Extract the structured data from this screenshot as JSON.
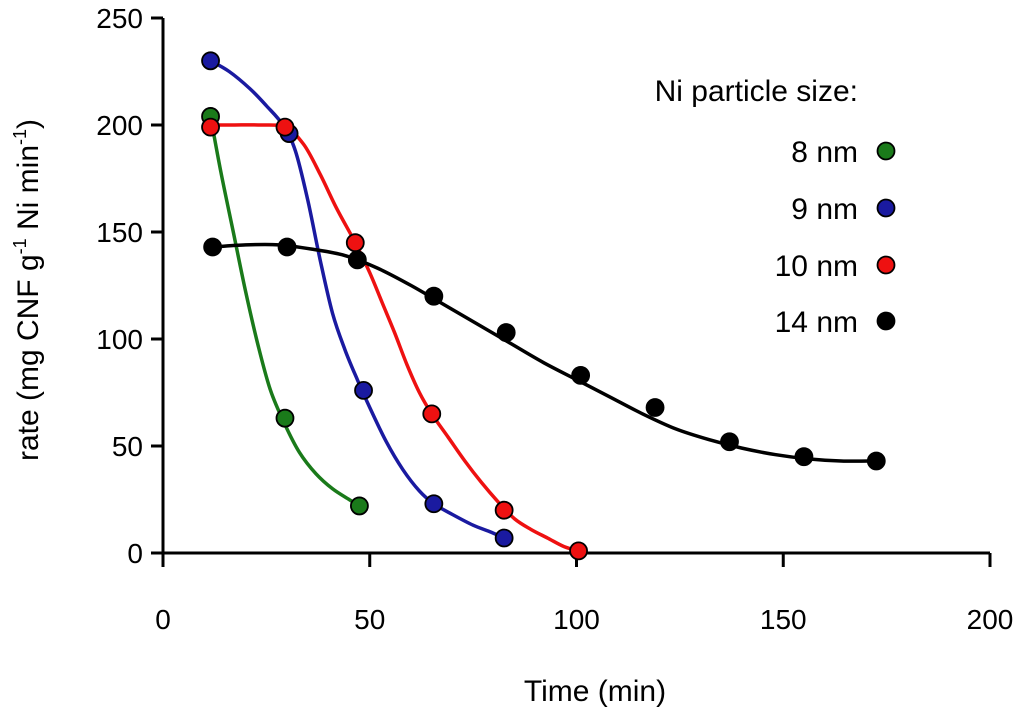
{
  "chart_data": {
    "type": "scatter",
    "title": "",
    "xlabel": "Time (min)",
    "ylabel_parts": [
      "rate (mg CNF g",
      "-1",
      " Ni min",
      "-1",
      ")"
    ],
    "xlim": [
      0,
      200
    ],
    "ylim": [
      0,
      250
    ],
    "xticks": [
      0,
      50,
      100,
      150,
      200
    ],
    "yticks": [
      0,
      50,
      100,
      150,
      200,
      250
    ],
    "grid": false,
    "legend_title": "Ni particle size:",
    "legend_position": "top-right",
    "series": [
      {
        "name": "8 nm",
        "color": "#1a7a1a",
        "x": [
          11.5,
          29.5,
          47.5
        ],
        "y": [
          204,
          63,
          22
        ],
        "curve": [
          [
            11.5,
            204
          ],
          [
            14,
            178
          ],
          [
            17,
            150
          ],
          [
            20,
            122
          ],
          [
            23,
            97
          ],
          [
            26,
            76
          ],
          [
            29.5,
            60
          ],
          [
            33,
            47
          ],
          [
            37,
            37
          ],
          [
            41,
            30
          ],
          [
            45,
            25
          ],
          [
            47.5,
            22
          ]
        ]
      },
      {
        "name": "9 nm",
        "color": "#1a1aa0",
        "x": [
          11.5,
          30.5,
          48.5,
          65.5,
          82.5
        ],
        "y": [
          230,
          196,
          76,
          23,
          7
        ],
        "curve": [
          [
            11.5,
            230
          ],
          [
            16,
            225
          ],
          [
            21,
            217
          ],
          [
            25,
            209
          ],
          [
            29,
            200
          ],
          [
            32,
            188
          ],
          [
            35,
            165
          ],
          [
            38,
            137
          ],
          [
            41,
            112
          ],
          [
            44,
            95
          ],
          [
            47,
            81
          ],
          [
            50,
            68
          ],
          [
            54,
            52
          ],
          [
            58,
            39
          ],
          [
            62,
            29
          ],
          [
            65.5,
            23
          ],
          [
            70,
            18
          ],
          [
            75,
            13
          ],
          [
            79,
            10
          ],
          [
            82.5,
            7
          ]
        ]
      },
      {
        "name": "10 nm",
        "color": "#ee1111",
        "x": [
          11.5,
          29.5,
          46.5,
          65,
          82.5,
          100.5
        ],
        "y": [
          199,
          199,
          145,
          65,
          20,
          1
        ],
        "curve": [
          [
            11.5,
            200
          ],
          [
            17,
            200
          ],
          [
            23,
            200
          ],
          [
            29.5,
            199
          ],
          [
            34,
            191
          ],
          [
            38,
            177
          ],
          [
            42,
            161
          ],
          [
            46.5,
            145
          ],
          [
            50,
            131
          ],
          [
            53,
            117
          ],
          [
            56,
            103
          ],
          [
            59,
            88
          ],
          [
            62,
            75
          ],
          [
            65,
            65
          ],
          [
            69,
            54
          ],
          [
            73,
            43
          ],
          [
            77,
            33
          ],
          [
            81,
            24
          ],
          [
            85,
            16
          ],
          [
            89,
            11
          ],
          [
            93,
            7
          ],
          [
            97,
            3
          ],
          [
            100.5,
            1
          ]
        ]
      },
      {
        "name": "14 nm",
        "color": "#000000",
        "x": [
          12,
          30,
          47,
          65.5,
          83,
          101,
          119,
          137,
          155,
          172.5
        ],
        "y": [
          143,
          143,
          137,
          120,
          103,
          83,
          68,
          52,
          45,
          43
        ],
        "curve": [
          [
            12,
            143
          ],
          [
            20,
            144
          ],
          [
            28,
            144
          ],
          [
            36,
            142
          ],
          [
            44,
            139
          ],
          [
            52,
            133
          ],
          [
            60,
            125
          ],
          [
            68,
            116
          ],
          [
            76,
            107
          ],
          [
            84,
            98
          ],
          [
            92,
            89
          ],
          [
            100,
            81
          ],
          [
            108,
            73
          ],
          [
            116,
            65
          ],
          [
            124,
            58
          ],
          [
            132,
            53
          ],
          [
            140,
            49
          ],
          [
            148,
            46
          ],
          [
            156,
            44
          ],
          [
            164,
            43
          ],
          [
            172.5,
            43
          ]
        ]
      }
    ]
  }
}
